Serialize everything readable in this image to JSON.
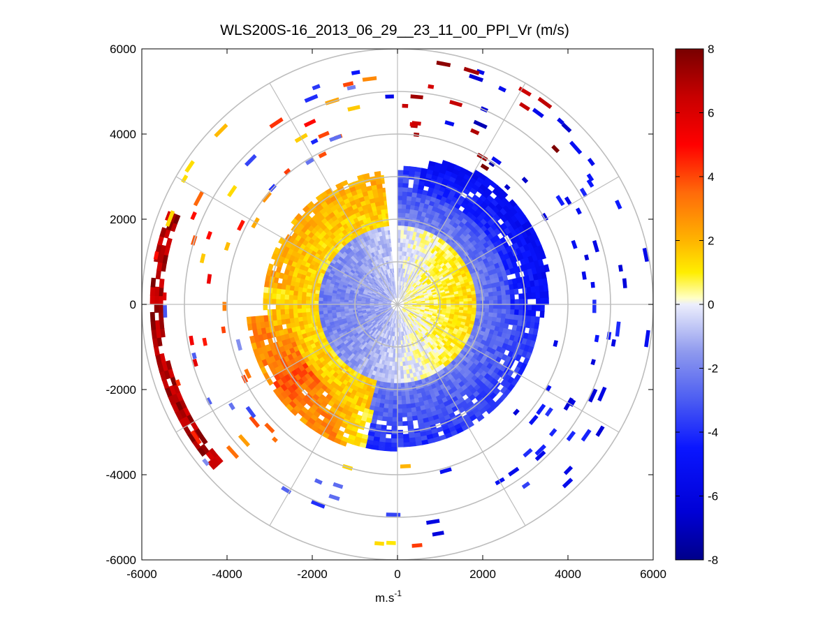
{
  "chart_data": {
    "type": "heatmap",
    "subtype": "polar-ppi",
    "title": "WLS200S-16_2013_06_29__23_11_00_PPI_Vr (m/s)",
    "xlabel_base": "m.s",
    "xlabel_exp": "-1",
    "ylabel": "",
    "xlim": [
      -6000,
      6000
    ],
    "ylim": [
      -6000,
      6000
    ],
    "xticks": [
      -6000,
      -4000,
      -2000,
      0,
      2000,
      4000,
      6000
    ],
    "yticks": [
      6000,
      4000,
      2000,
      0,
      -2000,
      -4000,
      -6000
    ],
    "xtick_labels": [
      "-6000",
      "-4000",
      "-2000",
      "0",
      "2000",
      "4000",
      "6000"
    ],
    "ytick_labels": [
      "6000",
      "4000",
      "2000",
      "0",
      "-2000",
      "-4000",
      "-6000"
    ],
    "range_rings": [
      1000,
      2000,
      3000,
      4000,
      5000,
      6000
    ],
    "spokes_deg": [
      0,
      30,
      60,
      90,
      120,
      150,
      180,
      210,
      240,
      270,
      300,
      330
    ],
    "grid": true,
    "field": {
      "name": "Radial velocity Vr",
      "units": "m/s",
      "max_range": 6000,
      "gap_azimuth_deg": [
        -5,
        0
      ],
      "description_regions": [
        {
          "azimuth_deg": [
            0,
            80
          ],
          "range_m": [
            0,
            3600
          ],
          "vr_approx": -4.5
        },
        {
          "azimuth_deg": [
            80,
            200
          ],
          "range_m": [
            0,
            3400
          ],
          "vr_approx": -2.5
        },
        {
          "azimuth_deg": [
            200,
            280
          ],
          "range_m": [
            2400,
            3400
          ],
          "vr_approx": 3.5
        },
        {
          "azimuth_deg": [
            280,
            355
          ],
          "range_m": [
            0,
            3000
          ],
          "vr_approx": 1.0
        },
        {
          "azimuth_deg": [
            235,
            290
          ],
          "range_m": [
            5500,
            6000
          ],
          "vr_approx": 7.0
        }
      ]
    },
    "colorbar": {
      "ticks": [
        8,
        6,
        4,
        2,
        0,
        -2,
        -4,
        -6,
        -8
      ],
      "tick_labels": [
        "8",
        "6",
        "4",
        "2",
        "0",
        "-2",
        "-4",
        "-6",
        "-8"
      ],
      "range": [
        -8,
        8
      ],
      "colormap": [
        {
          "v": -8,
          "color": "#00008a"
        },
        {
          "v": -6.5,
          "color": "#0000d6"
        },
        {
          "v": -4.5,
          "color": "#0a16ff"
        },
        {
          "v": -3,
          "color": "#4b5cf2"
        },
        {
          "v": -1.5,
          "color": "#8e99ee"
        },
        {
          "v": 0,
          "color": "#eceefc"
        },
        {
          "v": 0.2,
          "color": "#ffffc4"
        },
        {
          "v": 1,
          "color": "#ffee00"
        },
        {
          "v": 2,
          "color": "#ffb400"
        },
        {
          "v": 3.5,
          "color": "#ff6a0a"
        },
        {
          "v": 5,
          "color": "#ff0000"
        },
        {
          "v": 6.5,
          "color": "#c80000"
        },
        {
          "v": 8,
          "color": "#780000"
        }
      ]
    }
  }
}
